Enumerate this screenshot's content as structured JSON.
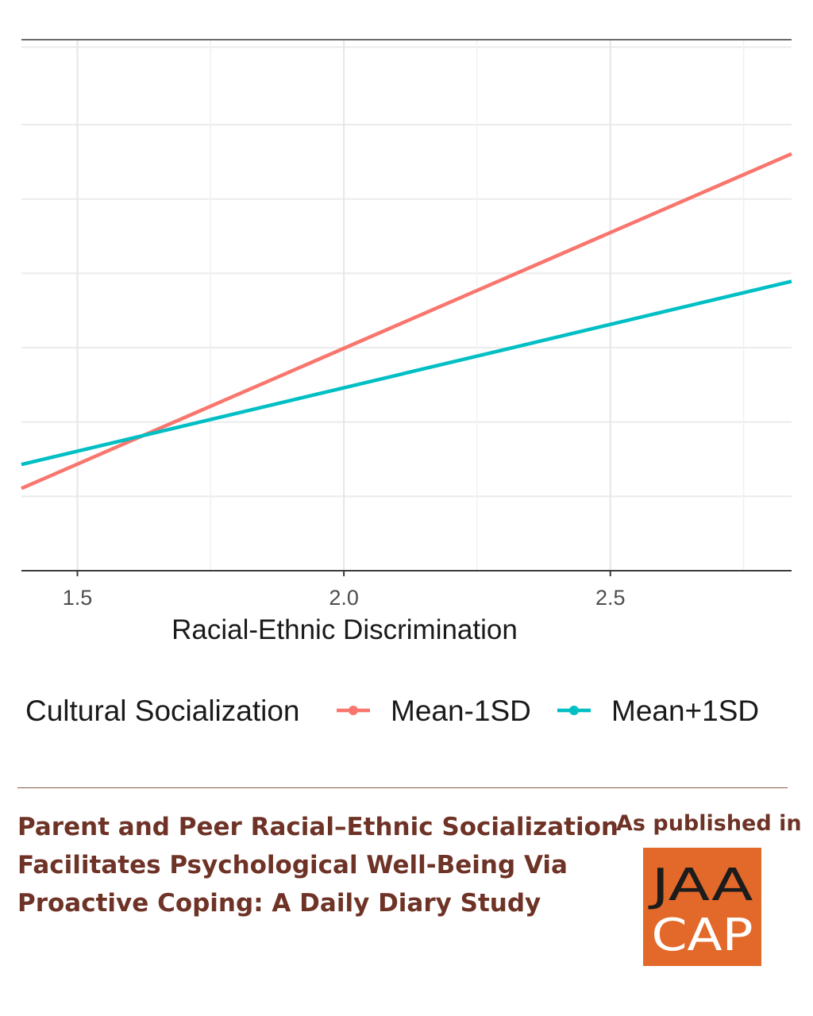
{
  "chart_data": {
    "type": "line",
    "xlabel": "Racial-Ethnic Discrimination",
    "ylabel": "",
    "x_ticks": [
      1.5,
      2.0,
      2.5
    ],
    "x_tick_labels": [
      "1.5",
      "2.0",
      "2.5"
    ],
    "xlim": [
      1.395,
      2.84
    ],
    "grid": true,
    "legend_title": "Cultural Socialization",
    "legend_position": "bottom",
    "series": [
      {
        "name": "Mean-1SD",
        "color": "#f8766d",
        "x": [
          1.395,
          2.84
        ],
        "y": [
          0.155,
          0.785
        ]
      },
      {
        "name": "Mean+1SD",
        "color": "#00bfc4",
        "x": [
          1.395,
          2.84
        ],
        "y": [
          0.2,
          0.545
        ]
      }
    ]
  },
  "paper": {
    "title_lines": [
      "Parent and Peer Racial–Ethnic Socialization",
      "Facilitates Psychological Well-Being Via",
      "Proactive Coping: A Daily Diary Study"
    ],
    "published_label": "As published in",
    "journal_logo_line1": "JAA",
    "journal_logo_line2": "CAP",
    "logo_color": "#e3692a",
    "title_color": "#6e3326"
  }
}
